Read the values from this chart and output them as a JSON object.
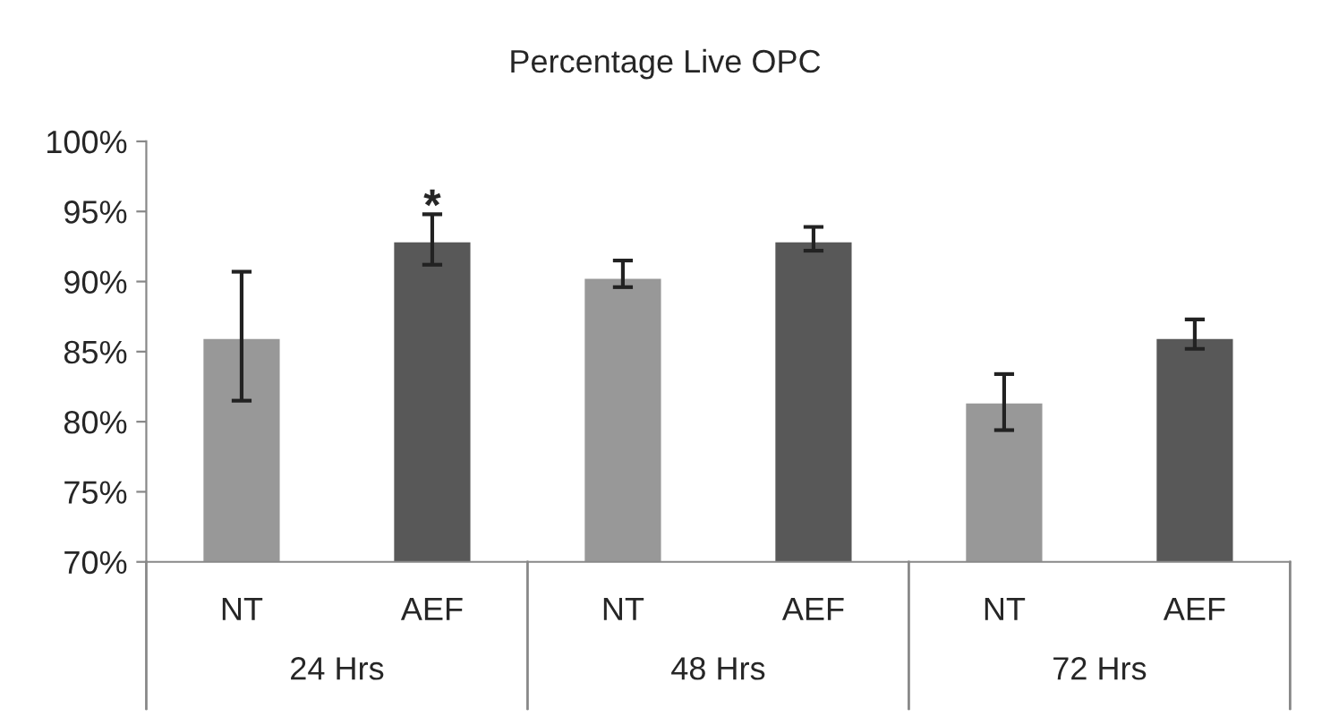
{
  "chart_data": {
    "type": "bar",
    "title": "Percentage Live OPC",
    "categories": [
      "NT",
      "AEF",
      "NT",
      "AEF",
      "NT",
      "AEF"
    ],
    "values": [
      85.9,
      92.8,
      90.2,
      92.8,
      81.3,
      85.9
    ],
    "colors": [
      "#989898",
      "#585858",
      "#989898",
      "#585858",
      "#989898",
      "#585858"
    ],
    "errors": [
      [
        81.5,
        90.7
      ],
      [
        91.2,
        94.8
      ],
      [
        89.6,
        91.5
      ],
      [
        92.2,
        93.9
      ],
      [
        79.4,
        83.4
      ],
      [
        85.2,
        87.3
      ]
    ],
    "ylim": [
      70,
      100
    ],
    "yticks": [
      {
        "value": 70,
        "label": "70%"
      },
      {
        "value": 75,
        "label": "75%"
      },
      {
        "value": 80,
        "label": "80%"
      },
      {
        "value": 85,
        "label": "85%"
      },
      {
        "value": 90,
        "label": "90%"
      },
      {
        "value": 95,
        "label": "95%"
      },
      {
        "value": 100,
        "label": "100%"
      }
    ],
    "grid": false,
    "annotations": [
      {
        "text": "*",
        "x": "AEF",
        "y": 95.2
      },
      "24 Hrs",
      "48 Hrs",
      "72 Hrs"
    ]
  }
}
